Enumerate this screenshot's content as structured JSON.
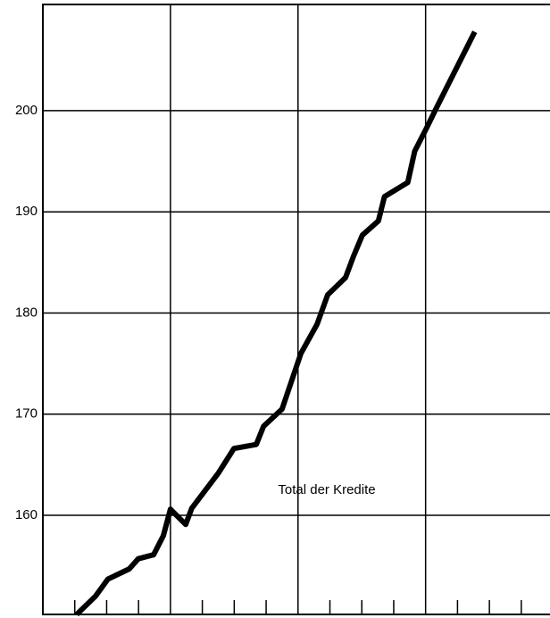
{
  "chart_data": {
    "type": "line",
    "annotation": "Total der Kredite",
    "x": [
      1.06,
      1.65,
      2.04,
      2.71,
      2.99,
      3.47,
      3.78,
      4.0,
      4.48,
      4.67,
      5.51,
      5.99,
      6.69,
      6.92,
      7.5,
      8.09,
      8.6,
      8.93,
      9.49,
      9.74,
      10.02,
      10.52,
      10.71,
      11.44,
      11.66,
      12.03,
      12.36,
      13.54
    ],
    "series": [
      {
        "color": "#000000",
        "values": [
          150.2,
          152.0,
          153.7,
          154.7,
          155.7,
          156.1,
          158.0,
          160.6,
          159.1,
          160.7,
          164.2,
          166.6,
          167.0,
          168.8,
          170.5,
          176.0,
          178.9,
          181.8,
          183.5,
          185.6,
          187.7,
          189.1,
          191.5,
          192.9,
          196.0,
          198.3,
          200.4,
          207.8
        ]
      }
    ],
    "xlim": [
      0,
      15.9
    ],
    "xticks": [
      0,
      4,
      8,
      12
    ],
    "xminorticks": [
      1,
      2,
      3,
      5,
      6,
      7,
      9,
      10,
      11,
      13,
      14,
      15
    ],
    "ylim": [
      150.2,
      210.5
    ],
    "yticks": [
      160,
      170,
      180,
      190,
      200
    ],
    "grid": true
  }
}
